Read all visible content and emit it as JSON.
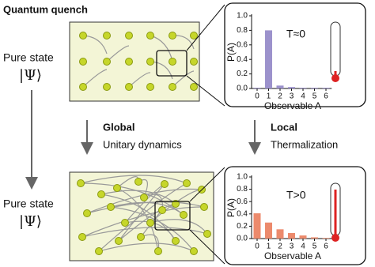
{
  "title": "Quantum quench",
  "top_state": {
    "label": "Pure state",
    "ket": "|Ψ⟩"
  },
  "bottom_state": {
    "label": "Pure state",
    "ket": "|Ψ⟩"
  },
  "global": {
    "title": "Global",
    "subtitle": "Unitary dynamics"
  },
  "local": {
    "title": "Local",
    "subtitle": "Thermalization"
  },
  "chart_data": [
    {
      "type": "bar",
      "annotation": "T≈0",
      "xlabel": "Observable A",
      "ylabel": "P(A)",
      "categories": [
        "0",
        "1",
        "2",
        "3",
        "4",
        "5",
        "6"
      ],
      "values": [
        0.01,
        0.8,
        0.04,
        0.02,
        0.01,
        0.01,
        0.01
      ],
      "color": "#9c92cc",
      "ylim": [
        0,
        1
      ],
      "yticks": [
        {
          "value": 0,
          "label": "0.0"
        },
        0.2,
        0.4,
        0.6,
        0.8,
        {
          "value": 1,
          "label": "1.0"
        }
      ]
    },
    {
      "type": "bar",
      "annotation": "T>0",
      "xlabel": "Observable A",
      "ylabel": "P(A)",
      "categories": [
        "0",
        "1",
        "2",
        "3",
        "4",
        "5",
        "6"
      ],
      "values": [
        0.41,
        0.26,
        0.15,
        0.09,
        0.05,
        0.02,
        0.01
      ],
      "color": "#ec8a6c",
      "ylim": [
        0,
        1
      ],
      "yticks": [
        {
          "value": 0,
          "label": "0.0"
        },
        0.2,
        0.4,
        0.6,
        0.8,
        {
          "value": 1,
          "label": "1.0"
        }
      ]
    }
  ]
}
